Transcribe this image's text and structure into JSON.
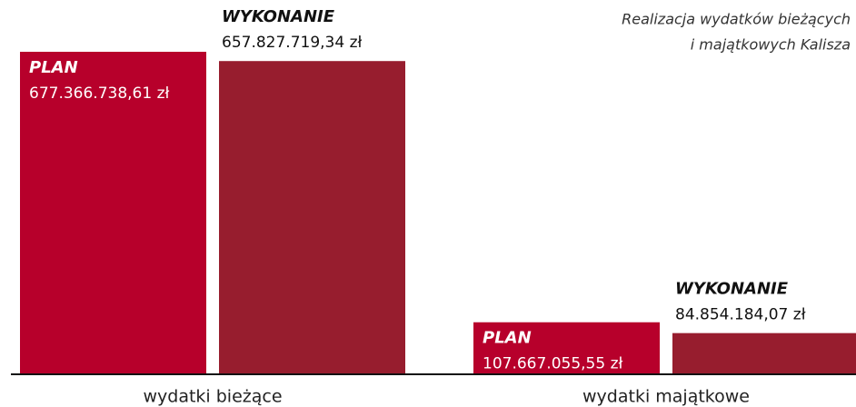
{
  "chart_data": {
    "type": "bar",
    "title": [
      "Realizacja wydatków bieżących",
      "i majątkowych Kalisza"
    ],
    "categories": [
      "wydatki bieżące",
      "wydatki majątkowe"
    ],
    "series": [
      {
        "name": "PLAN",
        "color": "#b7002b",
        "values": [
          677366738.61,
          107667055.55
        ],
        "value_labels": [
          "677.366.738,61 zł",
          "107.667.055,55 zł"
        ]
      },
      {
        "name": "WYKONANIE",
        "color": "#971d2e",
        "values": [
          657827719.34,
          84854184.07
        ],
        "value_labels": [
          "657.827.719,34 zł",
          "84.854.184,07 zł"
        ]
      }
    ]
  }
}
